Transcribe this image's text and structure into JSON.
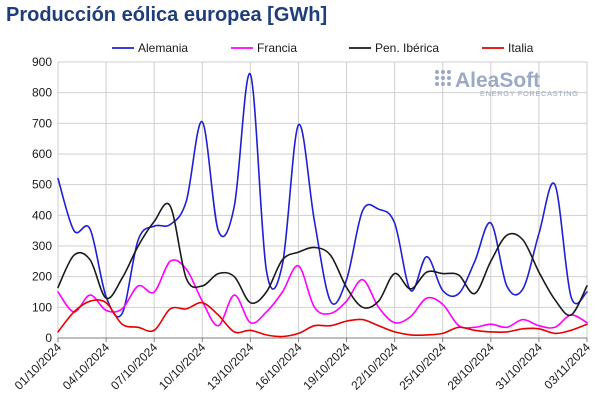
{
  "chart_data": {
    "type": "line",
    "title": "Producción eólica europea [GWh]",
    "xlabel": "",
    "ylabel": "",
    "ylim": [
      0,
      900
    ],
    "yticks": [
      0,
      100,
      200,
      300,
      400,
      500,
      600,
      700,
      800,
      900
    ],
    "xlim": [
      0,
      33
    ],
    "x_tick_labels": [
      "01/10/2024",
      "04/10/2024",
      "07/10/2024",
      "10/10/2024",
      "13/10/2024",
      "16/10/2024",
      "19/10/2024",
      "22/10/2024",
      "25/10/2024",
      "28/10/2024",
      "31/10/2024",
      "03/11/2024"
    ],
    "grid": true,
    "legend_position": "top",
    "x": [
      0,
      1,
      2,
      3,
      4,
      5,
      6,
      7,
      8,
      9,
      10,
      11,
      12,
      13,
      14,
      15,
      16,
      17,
      18,
      19,
      20,
      21,
      22,
      23,
      24,
      25,
      26,
      27,
      28,
      29,
      30,
      31,
      32,
      33
    ],
    "series": [
      {
        "name": "Alemania",
        "color": "#1f1fd6",
        "values": [
          520,
          350,
          355,
          135,
          80,
          320,
          365,
          370,
          445,
          705,
          350,
          430,
          860,
          220,
          240,
          695,
          380,
          120,
          190,
          415,
          420,
          375,
          155,
          265,
          155,
          145,
          250,
          375,
          170,
          160,
          340,
          500,
          135,
          150
        ]
      },
      {
        "name": "Francia",
        "color": "#ff00ff",
        "values": [
          150,
          85,
          140,
          90,
          95,
          170,
          150,
          250,
          225,
          120,
          40,
          140,
          50,
          85,
          150,
          235,
          100,
          80,
          120,
          190,
          100,
          50,
          70,
          130,
          110,
          40,
          35,
          45,
          35,
          60,
          40,
          35,
          75,
          50
        ]
      },
      {
        "name": "Pen. Ibérica",
        "color": "#1a1a1a",
        "values": [
          165,
          270,
          255,
          130,
          195,
          300,
          380,
          430,
          195,
          170,
          210,
          200,
          115,
          150,
          255,
          280,
          295,
          270,
          165,
          100,
          120,
          210,
          160,
          215,
          210,
          205,
          145,
          250,
          335,
          320,
          215,
          125,
          75,
          170
        ]
      },
      {
        "name": "Italia",
        "color": "#e60000",
        "values": [
          20,
          85,
          120,
          115,
          45,
          35,
          25,
          95,
          95,
          115,
          75,
          20,
          25,
          10,
          5,
          15,
          40,
          40,
          55,
          60,
          40,
          20,
          10,
          10,
          15,
          35,
          25,
          20,
          20,
          30,
          30,
          15,
          25,
          45
        ]
      }
    ]
  },
  "logo": {
    "name": "AleaSoft",
    "tagline": "ENERGY FORECASTING"
  }
}
